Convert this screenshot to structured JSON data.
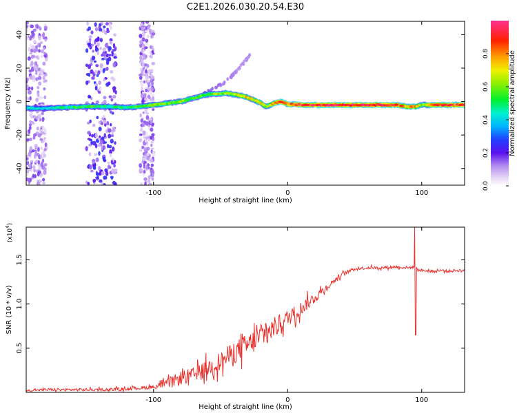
{
  "figure_title": "C2E1.2026.030.20.54.E30",
  "colors": {
    "snr_line": "#e8302c",
    "axis": "#000000",
    "background": "#ffffff"
  },
  "chart_data": [
    {
      "type": "heatmap",
      "title": "C2E1.2026.030.20.54.E30",
      "xlabel": "Height of straight line (km)",
      "ylabel": "Frequency (Hz)",
      "xlim": [
        -195,
        132
      ],
      "ylim": [
        -50,
        48
      ],
      "x_ticks": [
        -100,
        0,
        100
      ],
      "x_tick_labels": [
        "-100",
        "0",
        "100"
      ],
      "y_ticks": [
        -40,
        -20,
        0,
        20,
        40
      ],
      "y_tick_labels": [
        "-40",
        "-20",
        "0",
        "20",
        "40"
      ],
      "colorbar": {
        "label": "Normalized spectral amplitude",
        "range": [
          0,
          1
        ],
        "ticks": [
          0.0,
          0.2,
          0.4,
          0.6,
          0.8
        ],
        "tick_labels": [
          "0.0",
          "0.2",
          "0.4",
          "0.6",
          "0.8"
        ]
      },
      "ridge": {
        "name": "dominant frequency ridge",
        "x": [
          -195,
          -180,
          -165,
          -150,
          -135,
          -120,
          -110,
          -100,
          -90,
          -80,
          -70,
          -62,
          -55,
          -45,
          -38,
          -32,
          -25,
          -20,
          -16,
          -10,
          -5,
          0,
          10,
          30,
          60,
          80,
          90,
          95,
          100,
          110,
          120,
          132
        ],
        "freq": [
          -4,
          -4,
          -3.5,
          -3,
          -3,
          -3.5,
          -3,
          -2,
          -1,
          0,
          2,
          4,
          4.5,
          5,
          4,
          3,
          1,
          -1,
          -3,
          -1,
          0,
          -1.5,
          -2,
          -2,
          -2,
          -2,
          -3,
          -3,
          -2,
          -2,
          -2,
          -2
        ],
        "amplitude": [
          0.45,
          0.4,
          0.5,
          0.55,
          0.5,
          0.5,
          0.55,
          0.6,
          0.6,
          0.65,
          0.55,
          0.6,
          0.6,
          0.65,
          0.7,
          0.75,
          0.7,
          0.75,
          0.6,
          0.8,
          0.9,
          0.85,
          0.9,
          0.95,
          0.95,
          0.95,
          0.7,
          0.85,
          0.6,
          0.9,
          0.9,
          0.9
        ]
      },
      "branch": {
        "name": "secondary rising branch",
        "x": [
          -62,
          -55,
          -48,
          -42,
          -37,
          -32,
          -28
        ],
        "freq": [
          5,
          8,
          11,
          15,
          19,
          24,
          28
        ],
        "amplitude": [
          0.15,
          0.15,
          0.13,
          0.13,
          0.12,
          0.12,
          0.12
        ]
      },
      "noise_bands": [
        {
          "x_range": [
            -195,
            -180
          ],
          "amplitude": 0.12
        },
        {
          "x_range": [
            -150,
            -128
          ],
          "amplitude": 0.18
        },
        {
          "x_range": [
            -110,
            -100
          ],
          "amplitude": 0.12
        }
      ]
    },
    {
      "type": "line",
      "xlabel": "Height of straight line (km)",
      "ylabel": "SNR (10 * v/v)",
      "y_multiplier_label": "(x10",
      "y_multiplier_exponent": "4",
      "xlim": [
        -195,
        132
      ],
      "ylim": [
        0,
        1.87
      ],
      "x_ticks": [
        -100,
        0,
        100
      ],
      "x_tick_labels": [
        "-100",
        "0",
        "100"
      ],
      "y_ticks": [
        0.5,
        1.0,
        1.5
      ],
      "y_tick_labels": [
        "0.5",
        "1.0",
        "1.5"
      ],
      "series": [
        {
          "name": "SNR",
          "x": [
            -195,
            -180,
            -160,
            -140,
            -120,
            -100,
            -90,
            -80,
            -70,
            -60,
            -50,
            -40,
            -30,
            -20,
            -10,
            0,
            10,
            20,
            30,
            40,
            50,
            60,
            70,
            80,
            90,
            94,
            95,
            96,
            100,
            110,
            115,
            120,
            125,
            132
          ],
          "values": [
            0.02,
            0.03,
            0.03,
            0.03,
            0.04,
            0.06,
            0.1,
            0.16,
            0.2,
            0.27,
            0.35,
            0.45,
            0.53,
            0.63,
            0.73,
            0.84,
            0.95,
            1.07,
            1.2,
            1.33,
            1.4,
            1.41,
            1.41,
            1.42,
            1.41,
            1.42,
            1.4,
            1.39,
            1.38,
            1.37,
            1.38,
            1.37,
            1.38,
            1.38
          ],
          "noise": [
            0.01,
            0.02,
            0.02,
            0.02,
            0.02,
            0.03,
            0.06,
            0.1,
            0.1,
            0.12,
            0.14,
            0.16,
            0.17,
            0.17,
            0.15,
            0.12,
            0.1,
            0.08,
            0.05,
            0.03,
            0.02,
            0.02,
            0.02,
            0.02,
            0.02,
            0.02,
            0.02,
            0.02,
            0.02,
            0.02,
            0.02,
            0.02,
            0.02,
            0.02
          ]
        }
      ],
      "annotations": [
        {
          "x": 95,
          "peak_max": 1.87,
          "peak_min": 0.65,
          "label": ""
        }
      ]
    }
  ]
}
